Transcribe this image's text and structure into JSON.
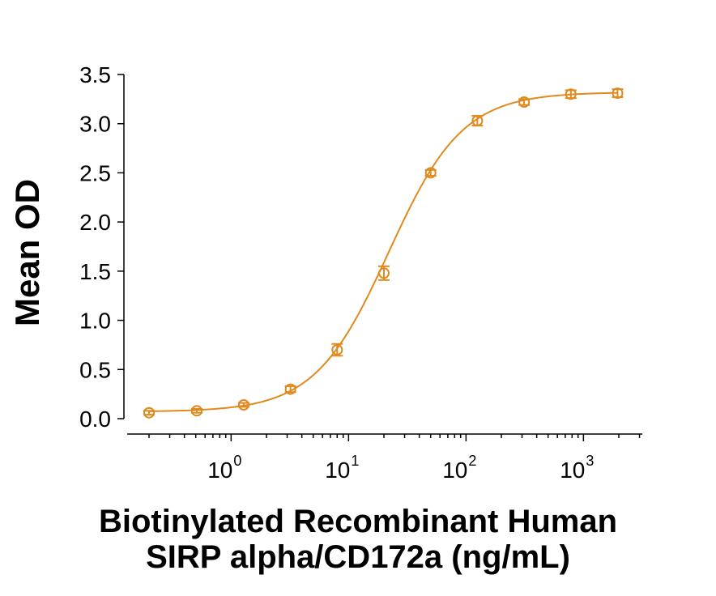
{
  "chart_data": {
    "type": "scatter",
    "title": "",
    "ylabel": "Mean OD",
    "xlabel_lines": [
      "Biotinylated Recombinant Human",
      "SIRP alpha/CD172a (ng/mL)"
    ],
    "x_scale": "log10",
    "xlim": [
      0.2,
      2000
    ],
    "ylim": [
      0,
      3.5
    ],
    "y_ticks": [
      "0.0",
      "0.5",
      "1.0",
      "1.5",
      "2.0",
      "2.5",
      "3.0",
      "3.5"
    ],
    "x_ticks": [
      {
        "base": "10",
        "exp": "0"
      },
      {
        "base": "10",
        "exp": "1"
      },
      {
        "base": "10",
        "exp": "2"
      },
      {
        "base": "10",
        "exp": "3"
      }
    ],
    "grid": false,
    "color": "#E08A1E",
    "series": [
      {
        "x": [
          0.2,
          0.51,
          1.28,
          3.2,
          8.0,
          20.0,
          50.0,
          125.0,
          312.5,
          781.0,
          1953.0
        ],
        "y": [
          0.06,
          0.08,
          0.14,
          0.3,
          0.7,
          1.48,
          2.5,
          3.03,
          3.22,
          3.3,
          3.31
        ],
        "err": [
          0.02,
          0.02,
          0.02,
          0.03,
          0.06,
          0.07,
          0.03,
          0.05,
          0.03,
          0.04,
          0.04
        ]
      }
    ],
    "fit": "4-parameter logistic curve"
  }
}
